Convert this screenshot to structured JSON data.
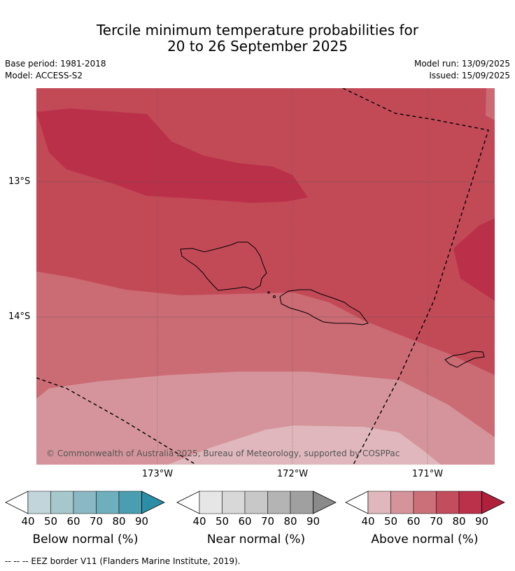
{
  "title_line1": "Tercile minimum temperature probabilities for",
  "title_line2": "20 to 26 September 2025",
  "base_period": "Base period: 1981-2018",
  "model": "Model: ACCESS-S2",
  "model_run": "Model run: 13/09/2025",
  "issued": "Issued: 15/09/2025",
  "lat_labels": [
    "13°S",
    "14°S"
  ],
  "lon_labels": [
    "173°W",
    "172°W",
    "171°W"
  ],
  "copyright": "© Commonwealth of Australia 2025, Bureau of Meteorology, supported by COSPPac",
  "colorbars": [
    {
      "label": "Below normal (%)",
      "ticks": [
        "40",
        "50",
        "60",
        "70",
        "80",
        "90"
      ],
      "colors": [
        "#c2d5db",
        "#a6c8cc",
        "#8ab8c3",
        "#6eafbd",
        "#4a9eb0",
        "#2b8ea6"
      ]
    },
    {
      "label": "Near normal (%)",
      "ticks": [
        "40",
        "50",
        "60",
        "70",
        "80",
        "90"
      ],
      "colors": [
        "#e6e6e6",
        "#d8d8d8",
        "#c8c8c8",
        "#b4b4b4",
        "#a0a0a0",
        "#8a8a8a"
      ]
    },
    {
      "label": "Above normal (%)",
      "ticks": [
        "40",
        "50",
        "60",
        "70",
        "80",
        "90"
      ],
      "colors": [
        "#dfb7bc",
        "#d5949b",
        "#cb7079",
        "#c24d5c",
        "#bb3149",
        "#b01f3c"
      ]
    }
  ],
  "footnote": "--  --  -- EEZ border V11 (Flanders Marine Institute, 2019).",
  "map_colors": {
    "c50": "#dfb7bc",
    "c60": "#d5949b",
    "c70": "#cb6b74",
    "c80": "#c24a57",
    "c90": "#ba3049"
  }
}
